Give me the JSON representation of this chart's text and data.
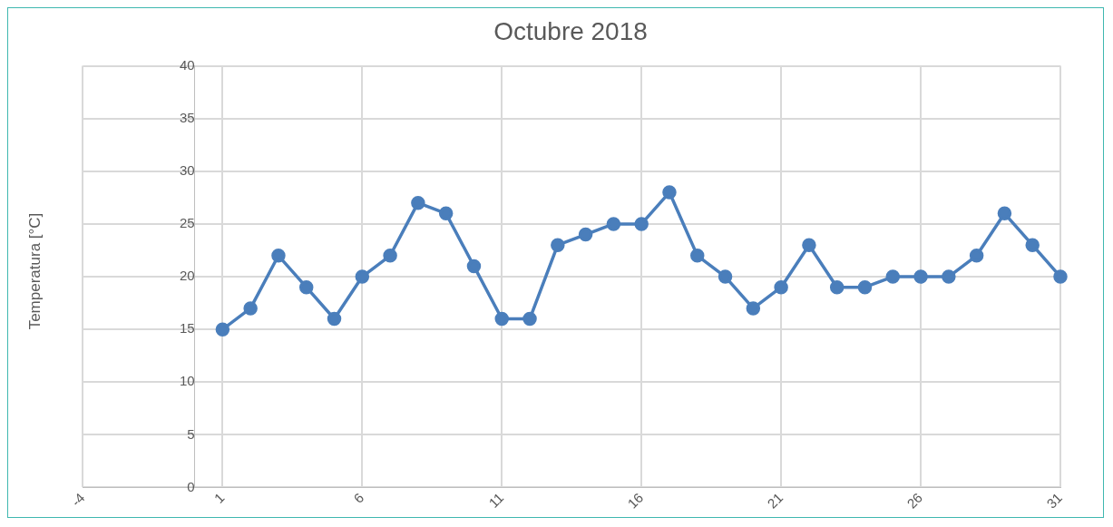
{
  "chart_data": {
    "type": "line",
    "title": "Octubre 2018",
    "ylabel": "Temperatura [°C]",
    "x": [
      1,
      2,
      3,
      4,
      5,
      6,
      7,
      8,
      9,
      10,
      11,
      12,
      13,
      14,
      15,
      16,
      17,
      18,
      19,
      20,
      21,
      22,
      23,
      24,
      25,
      26,
      27,
      28,
      29,
      30,
      31
    ],
    "series": [
      {
        "color": "#4a7ebb",
        "values": [
          15,
          17,
          22,
          19,
          16,
          20,
          22,
          27,
          26,
          21,
          16,
          16,
          23,
          24,
          25,
          25,
          28,
          22,
          20,
          17,
          19,
          23,
          19,
          19,
          20,
          20,
          20,
          22,
          26,
          23,
          20
        ]
      }
    ],
    "xlim": [
      -4,
      31
    ],
    "xticks": [
      -4,
      1,
      6,
      11,
      16,
      21,
      26,
      31
    ],
    "ylim": [
      0,
      40
    ],
    "yticks": [
      0,
      5,
      10,
      15,
      20,
      25,
      30,
      35,
      40
    ],
    "grid": true,
    "marker": "circle",
    "line_style": "solid",
    "legend": false
  }
}
